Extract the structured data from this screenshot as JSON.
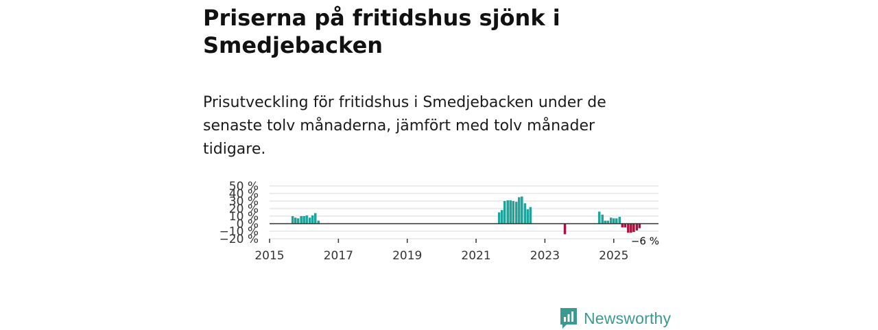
{
  "header": {
    "title": "Priserna på fritidshus sjönk i Smedjebacken",
    "subtitle": "Prisutveckling för fritidshus i Smedjebacken under de senaste tolv månaderna, jämfört med tolv månader tidigare."
  },
  "brand": {
    "name": "Newsworthy"
  },
  "colors": {
    "positive": "#1fa39a",
    "negative": "#a8123e",
    "grid": "#d9d9d9",
    "zero": "#333333"
  },
  "chart_data": {
    "type": "bar",
    "title": "",
    "xlabel": "",
    "ylabel": "",
    "ylim": [
      -20,
      50
    ],
    "yticks": [
      -20,
      -10,
      0,
      10,
      20,
      30,
      40,
      50
    ],
    "ytick_labels": [
      "−20 %",
      "−10 %",
      "0 %",
      "10 %",
      "20 %",
      "30 %",
      "40 %",
      "50 %"
    ],
    "xlim": [
      2015.0,
      2026.3
    ],
    "xticks": [
      2015,
      2017,
      2019,
      2021,
      2023,
      2025
    ],
    "xtick_labels": [
      "2015",
      "2017",
      "2019",
      "2021",
      "2023",
      "2025"
    ],
    "annotation": {
      "text": "−6 %",
      "x": 2025.75,
      "y": -6
    },
    "x": [
      2015.67,
      2015.75,
      2015.83,
      2015.92,
      2016.0,
      2016.08,
      2016.17,
      2016.25,
      2016.33,
      2016.42,
      2021.67,
      2021.75,
      2021.83,
      2021.92,
      2022.0,
      2022.08,
      2022.17,
      2022.25,
      2022.33,
      2022.42,
      2022.5,
      2022.58,
      2023.58,
      2024.58,
      2024.67,
      2024.75,
      2024.83,
      2024.92,
      2025.0,
      2025.08,
      2025.17,
      2025.25,
      2025.33,
      2025.42,
      2025.5,
      2025.58,
      2025.67,
      2025.75
    ],
    "values": [
      10,
      8,
      7,
      10,
      10,
      11,
      8,
      11,
      14,
      4,
      15,
      18,
      30,
      31,
      31,
      30,
      29,
      35,
      36,
      27,
      19,
      22,
      -14,
      16,
      12,
      4,
      4,
      8,
      7,
      7,
      9,
      -5,
      -5,
      -12,
      -12,
      -11,
      -9,
      -6
    ]
  }
}
